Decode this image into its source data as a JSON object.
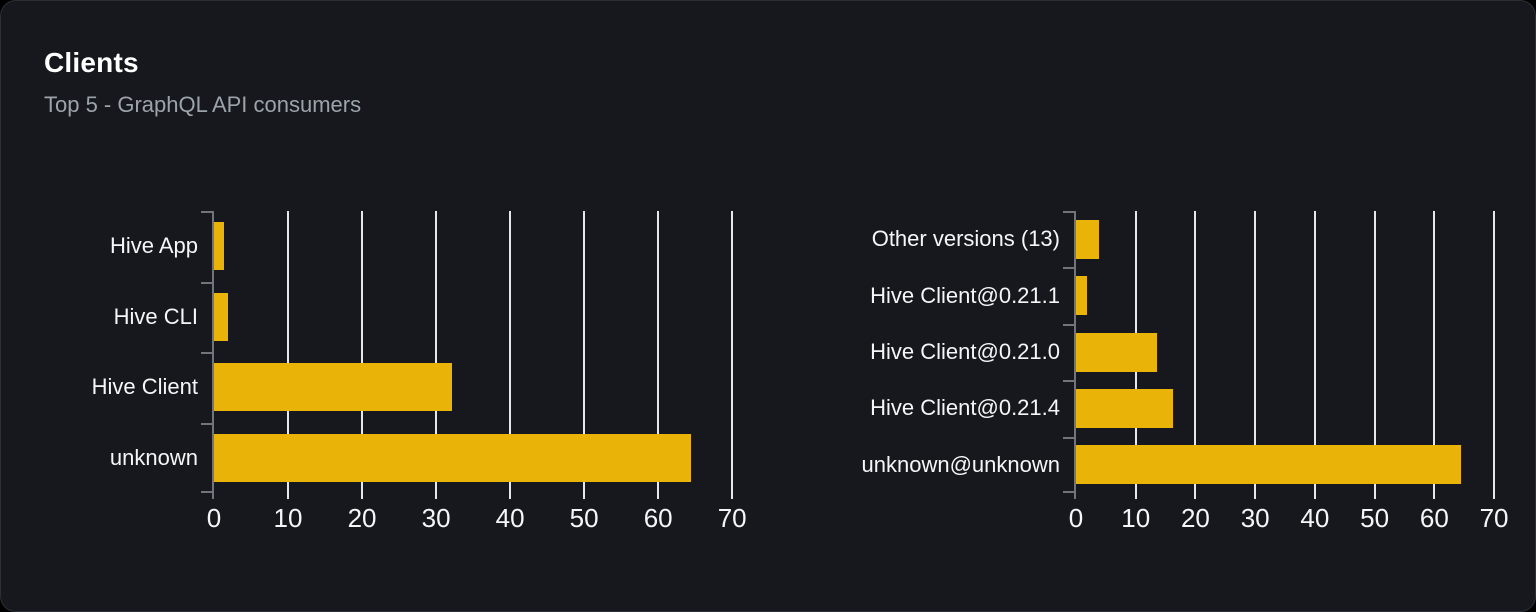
{
  "header": {
    "title": "Clients",
    "subtitle": "Top 5 - GraphQL API consumers"
  },
  "theme": {
    "page_background": "#000000",
    "card_background": "#16181d",
    "card_border": "#2b2f36",
    "title_color": "#ffffff",
    "subtitle_color": "#9ca3ab",
    "bar_color": "#eab308",
    "gridline_color": "#e3e7ef",
    "axis_color": "#70747c",
    "axis_label_color": "#f5f6f8"
  },
  "chart_data": [
    {
      "type": "bar",
      "orientation": "horizontal",
      "title": "",
      "xlabel": "",
      "ylabel": "",
      "categories": [
        "Hive App",
        "Hive CLI",
        "Hive Client",
        "unknown"
      ],
      "values": [
        1.3,
        1.9,
        32.2,
        64.4
      ],
      "xticks": [
        0,
        10,
        20,
        30,
        40,
        50,
        60,
        70
      ],
      "xlim": [
        0,
        72
      ],
      "grid": true,
      "legend": false
    },
    {
      "type": "bar",
      "orientation": "horizontal",
      "title": "",
      "xlabel": "",
      "ylabel": "",
      "categories": [
        "Other versions (13)",
        "Hive Client@0.21.1",
        "Hive Client@0.21.0",
        "Hive Client@0.21.4",
        "unknown@unknown"
      ],
      "values": [
        3.9,
        1.8,
        13.6,
        16.3,
        64.4
      ],
      "xticks": [
        0,
        10,
        20,
        30,
        40,
        50,
        60,
        70
      ],
      "xlim": [
        0,
        72
      ],
      "grid": true,
      "legend": false
    }
  ]
}
